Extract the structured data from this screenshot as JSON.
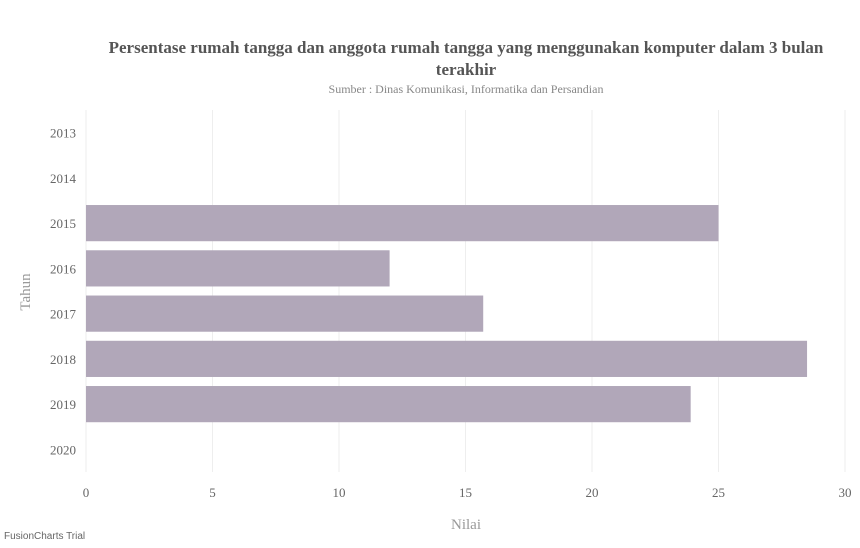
{
  "chart_data": {
    "type": "bar",
    "orientation": "horizontal",
    "title": "Persentase rumah tangga dan anggota rumah tangga yang menggunakan komputer dalam 3 bulan terakhir",
    "subtitle": "Sumber : Dinas Komunikasi, Informatika dan Persandian",
    "xlabel": "Nilai",
    "ylabel": "Tahun",
    "categories": [
      "2013",
      "2014",
      "2015",
      "2016",
      "2017",
      "2018",
      "2019",
      "2020"
    ],
    "values": [
      null,
      null,
      25.0,
      12.0,
      15.7,
      28.5,
      23.9,
      null
    ],
    "xlim": [
      0,
      30
    ],
    "xticks": [
      0,
      5,
      10,
      15,
      20,
      25,
      30
    ],
    "grid": true,
    "bar_color": "#b1a7b9",
    "grid_color": "#eeeeee"
  },
  "watermark": "FusionCharts Trial"
}
